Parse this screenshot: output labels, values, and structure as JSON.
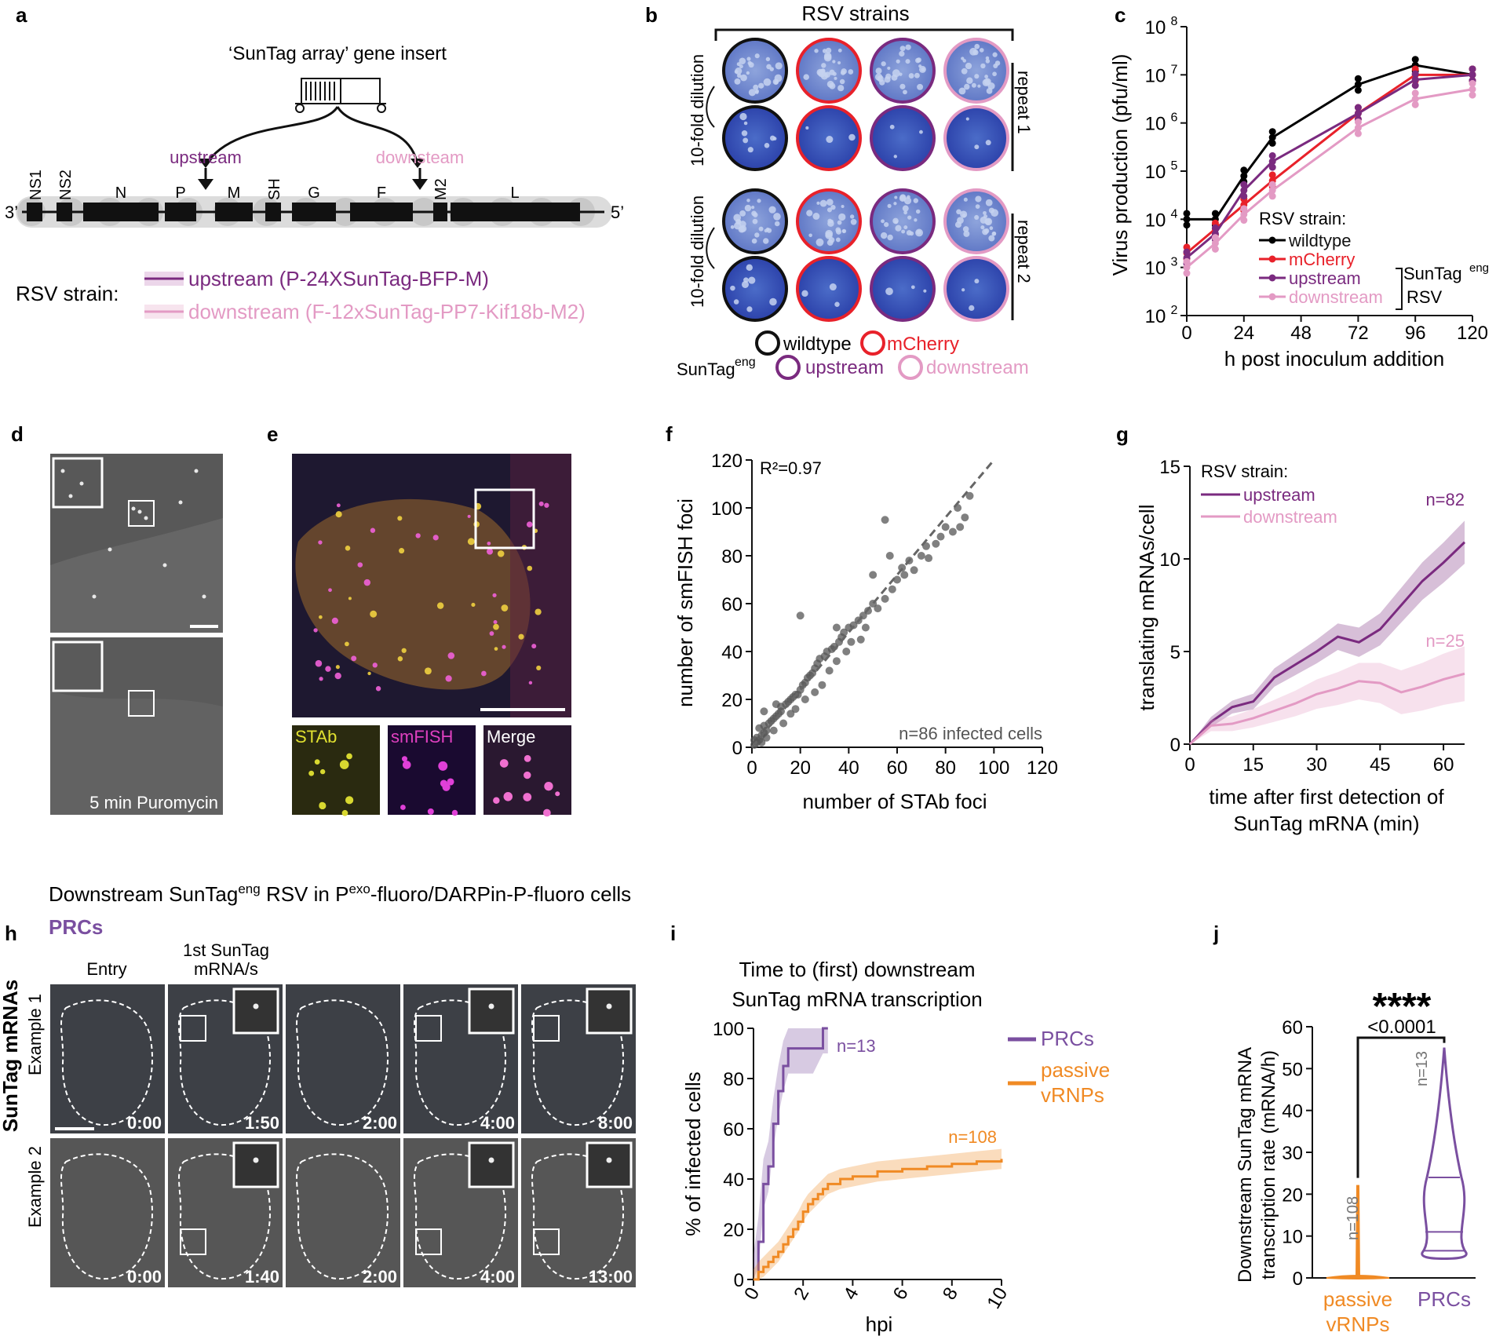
{
  "panels": {
    "a": {
      "letter": "a",
      "insert_title": "‘SunTag array’ gene insert",
      "upstream": "upstream",
      "downstream": "downsteam",
      "genes": [
        "NS1",
        "NS2",
        "N",
        "P",
        "M",
        "SH",
        "G",
        "F",
        "M2",
        "L"
      ],
      "end3": "3’",
      "end5": "5’",
      "strain_label": "RSV strain:",
      "strains": [
        {
          "text": "upstream (P-24XSunTag-BFP-M)",
          "color": "#7a2a7f"
        },
        {
          "text": "downstream (F-12xSunTag-PP7-Kif18b-M2)",
          "color": "#e39ac4"
        }
      ]
    },
    "b": {
      "letter": "b",
      "title": "RSV strains",
      "dilution": "10-fold dilution",
      "repeat1": "repeat 1",
      "repeat2": "repeat 2",
      "legend": {
        "wildtype": "wildtype",
        "mcherry": "mCherry",
        "suntag": "SunTag",
        "eng": "eng",
        "upstream": "upstream",
        "downstream": "downstream"
      }
    },
    "c": {
      "letter": "c",
      "legend_title": "RSV strain:",
      "legend_items": [
        "wildtype",
        "mCherry",
        "upstream",
        "downstream"
      ],
      "group_label": "SunTag",
      "group_sup": "eng",
      "group_label2": "RSV",
      "tick_base": "10",
      "chart_data": {
        "type": "line",
        "xlabel": "h post inoculum addition",
        "ylabel": "Virus production (pfu/ml)",
        "xticks": [
          0,
          24,
          48,
          72,
          96,
          120
        ],
        "yticks_exp": [
          2,
          3,
          4,
          5,
          6,
          7,
          8
        ],
        "xlim": [
          0,
          120
        ],
        "ylog_range": [
          2,
          8
        ],
        "x": [
          0,
          12,
          24,
          36,
          72,
          96,
          120
        ],
        "series": [
          {
            "name": "wildtype",
            "color": "#000000",
            "log_values": [
              4.0,
              4.0,
              4.9,
              5.7,
              6.8,
              7.2,
              7.0
            ]
          },
          {
            "name": "mCherry",
            "color": "#e8212a",
            "log_values": [
              3.3,
              3.8,
              4.3,
              4.8,
              6.2,
              7.0,
              7.0
            ]
          },
          {
            "name": "upstream",
            "color": "#7a2a7f",
            "log_values": [
              3.2,
              3.7,
              4.6,
              5.2,
              6.2,
              6.9,
              7.0
            ]
          },
          {
            "name": "downstream",
            "color": "#e39ac4",
            "log_values": [
              3.0,
              3.5,
              4.1,
              4.6,
              5.9,
              6.5,
              6.7
            ]
          }
        ]
      }
    },
    "d": {
      "letter": "d",
      "label": "5 min Puromycin"
    },
    "e": {
      "letter": "e",
      "channels": [
        "STAb",
        "smFISH",
        "Merge"
      ]
    },
    "f": {
      "letter": "f",
      "r2": "R²=0.97",
      "n_label": "n=86 infected cells",
      "chart_data": {
        "type": "scatter",
        "xlabel": "number of STAb foci",
        "ylabel": "number of smFISH foci",
        "xticks": [
          0,
          20,
          40,
          60,
          80,
          100,
          120
        ],
        "yticks": [
          0,
          20,
          40,
          60,
          80,
          100,
          120
        ],
        "xlim": [
          0,
          120
        ],
        "ylim": [
          0,
          120
        ],
        "fit": {
          "x": [
            0,
            100
          ],
          "y": [
            0,
            120
          ]
        },
        "points": [
          [
            1,
            1
          ],
          [
            2,
            2
          ],
          [
            3,
            3
          ],
          [
            2,
            4
          ],
          [
            4,
            5
          ],
          [
            5,
            6
          ],
          [
            6,
            7
          ],
          [
            5,
            9
          ],
          [
            7,
            10
          ],
          [
            8,
            11
          ],
          [
            9,
            12
          ],
          [
            10,
            13
          ],
          [
            11,
            14
          ],
          [
            12,
            15
          ],
          [
            12,
            17
          ],
          [
            14,
            18
          ],
          [
            15,
            19
          ],
          [
            16,
            20
          ],
          [
            17,
            21
          ],
          [
            18,
            22
          ],
          [
            19,
            22
          ],
          [
            20,
            24
          ],
          [
            21,
            26
          ],
          [
            22,
            27
          ],
          [
            23,
            29
          ],
          [
            24,
            30
          ],
          [
            25,
            31
          ],
          [
            26,
            33
          ],
          [
            27,
            35
          ],
          [
            28,
            37
          ],
          [
            30,
            38
          ],
          [
            31,
            40
          ],
          [
            33,
            41
          ],
          [
            34,
            42
          ],
          [
            36,
            44
          ],
          [
            37,
            46
          ],
          [
            38,
            48
          ],
          [
            40,
            50
          ],
          [
            42,
            51
          ],
          [
            44,
            53
          ],
          [
            46,
            55
          ],
          [
            48,
            57
          ],
          [
            50,
            60
          ],
          [
            55,
            62
          ],
          [
            58,
            66
          ],
          [
            60,
            70
          ],
          [
            62,
            75
          ],
          [
            65,
            78
          ],
          [
            70,
            80
          ],
          [
            72,
            84
          ],
          [
            78,
            88
          ],
          [
            83,
            90
          ],
          [
            86,
            92
          ],
          [
            88,
            96
          ],
          [
            5,
            15
          ],
          [
            10,
            18
          ],
          [
            20,
            55
          ],
          [
            35,
            50
          ],
          [
            50,
            72
          ],
          [
            55,
            95
          ],
          [
            80,
            92
          ],
          [
            3,
            8
          ],
          [
            6,
            4
          ],
          [
            9,
            7
          ],
          [
            13,
            10
          ],
          [
            16,
            14
          ],
          [
            18,
            16
          ],
          [
            22,
            20
          ],
          [
            26,
            23
          ],
          [
            29,
            26
          ],
          [
            32,
            32
          ],
          [
            35,
            36
          ],
          [
            39,
            40
          ],
          [
            41,
            44
          ],
          [
            45,
            45
          ],
          [
            47,
            50
          ],
          [
            52,
            58
          ],
          [
            57,
            80
          ],
          [
            63,
            72
          ],
          [
            67,
            74
          ],
          [
            73,
            79
          ],
          [
            76,
            85
          ],
          [
            85,
            100
          ],
          [
            90,
            105
          ],
          [
            1,
            3
          ],
          [
            4,
            2
          ]
        ]
      }
    },
    "g": {
      "letter": "g",
      "legend_title": "RSV strain:",
      "n_up": "n=82",
      "n_down": "n=25",
      "chart_data": {
        "type": "line",
        "xlabel": "time after first detection of SunTag mRNA (min)",
        "xlabel1": "time after first detection of",
        "xlabel2": "SunTag mRNA (min)",
        "ylabel": "translating mRNAs/cell",
        "xticks": [
          0,
          15,
          30,
          45,
          60
        ],
        "yticks": [
          0,
          5,
          10,
          15
        ],
        "xlim": [
          0,
          65
        ],
        "ylim": [
          0,
          15
        ],
        "x": [
          0,
          5,
          10,
          15,
          20,
          25,
          30,
          35,
          40,
          45,
          50,
          55,
          60,
          65
        ],
        "series": [
          {
            "name": "upstream",
            "color": "#7a2a7f",
            "values": [
              0,
              1.2,
              2.0,
              2.3,
              3.6,
              4.3,
              5.0,
              5.8,
              5.5,
              6.2,
              7.5,
              8.8,
              9.8,
              10.9
            ],
            "band": 0.6
          },
          {
            "name": "downstream",
            "color": "#e39ac4",
            "values": [
              0,
              1.0,
              1.1,
              1.4,
              1.8,
              2.2,
              2.7,
              3.0,
              3.4,
              3.3,
              2.8,
              3.1,
              3.5,
              3.8
            ],
            "band": 0.8
          }
        ]
      }
    },
    "h": {
      "letter": "h",
      "header": "Downstream SunTag",
      "header_sup1": "eng",
      "header_mid": " RSV in P",
      "header_sup2": "exo",
      "header_tail": "-fluoro/DARPin-P-fluoro cells",
      "prcs": "PRCs",
      "row_label": "SunTag mRNAs",
      "col_labels": [
        "Entry",
        "1st SunTag",
        "mRNA/s"
      ],
      "examples": [
        "Example 1",
        "Example 2"
      ],
      "times_row1": [
        "0:00",
        "1:50",
        "2:00",
        "4:00",
        "8:00"
      ],
      "times_row2": [
        "0:00",
        "1:40",
        "2:00",
        "4:00",
        "13:00"
      ]
    },
    "i": {
      "letter": "i",
      "title1": "Time to (first) downstream",
      "title2": "SunTag mRNA transcription",
      "n_prcs": "n=13",
      "n_passive": "n=108",
      "legend_prcs": "PRCs",
      "legend_passive1": "passive",
      "legend_passive2": "vRNPs",
      "chart_data": {
        "type": "line",
        "xlabel": "hpi",
        "ylabel": "% of infected cells",
        "xticks": [
          0,
          2,
          4,
          6,
          8,
          10
        ],
        "yticks": [
          0,
          20,
          40,
          60,
          80,
          100
        ],
        "xlim": [
          0,
          10
        ],
        "ylim": [
          0,
          100
        ],
        "series": [
          {
            "name": "PRCs",
            "color": "#7a4fa0",
            "x": [
              0,
              0.2,
              0.4,
              0.6,
              0.8,
              1.0,
              1.2,
              1.4,
              1.6,
              1.8,
              2.0,
              2.4,
              2.8,
              3.0
            ],
            "values": [
              0,
              15,
              38,
              45,
              62,
              75,
              85,
              92,
              92,
              92,
              92,
              92,
              100,
              100
            ]
          },
          {
            "name": "passive vRNPs",
            "color": "#f08a24",
            "x": [
              0,
              0.2,
              0.4,
              0.6,
              0.8,
              1.0,
              1.2,
              1.4,
              1.6,
              1.8,
              2.0,
              2.2,
              2.4,
              2.6,
              2.8,
              3.0,
              3.5,
              4.0,
              5.0,
              6.0,
              7.0,
              8.0,
              9.0,
              10.0
            ],
            "values": [
              0,
              3,
              5,
              7,
              9,
              11,
              14,
              17,
              20,
              23,
              27,
              30,
              32,
              34,
              36,
              38,
              40,
              41,
              43,
              44,
              45,
              46,
              47,
              48
            ]
          }
        ]
      }
    },
    "j": {
      "letter": "j",
      "stars": "****",
      "pval": "<0.0001",
      "n_passive": "n=108",
      "n_prcs": "n=13",
      "chart_data": {
        "type": "violin",
        "ylabel": "Downstream SunTag mRNA transcription rate (mRNA/h)",
        "ylabel1": "Downstream SunTag mRNA",
        "ylabel2": "transcription rate (mRNA/h)",
        "yticks": [
          0,
          10,
          20,
          30,
          40,
          50,
          60
        ],
        "ylim": [
          0,
          60
        ],
        "categories": [
          "passive vRNPs",
          "PRCs"
        ],
        "category_lines": [
          [
            "passive",
            "vRNPs"
          ],
          [
            "PRCs"
          ]
        ],
        "colors": [
          "#f08a24",
          "#7a4fa0"
        ],
        "prcs_quartiles": [
          6.5,
          11,
          24
        ],
        "prcs_range": [
          5,
          55
        ],
        "passive_range": [
          0,
          22
        ]
      }
    }
  }
}
